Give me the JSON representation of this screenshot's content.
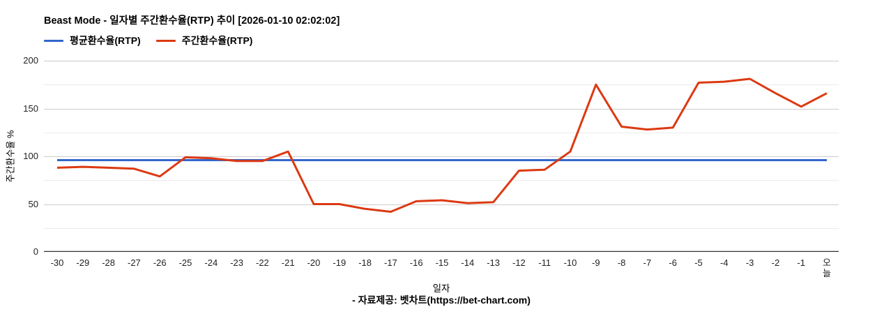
{
  "header": {
    "title": "Beast Mode - 일자별 주간환수율(RTP) 추이 [2026-01-10 02:02:02]"
  },
  "legend": {
    "average_label": "평균환수율(RTP)",
    "weekly_label": "주간환수율(RTP)"
  },
  "footer": {
    "credit": "- 자료제공: 벳차트(https://bet-chart.com)"
  },
  "chart_data": {
    "type": "line",
    "title": "Beast Mode - 일자별 주간환수율(RTP) 추이 [2026-01-10 02:02:02]",
    "xlabel": "일자",
    "ylabel": "주간환수율 %",
    "ylim": [
      0,
      200
    ],
    "yticks": [
      0,
      50,
      100,
      150,
      200
    ],
    "minor_grid_step": 25,
    "grid": {
      "major_color": "#cccccc",
      "minor_color": "#ebebeb",
      "axis_color": "#333333"
    },
    "legend_position": "top",
    "categories": [
      "-30",
      "-29",
      "-28",
      "-27",
      "-26",
      "-25",
      "-24",
      "-23",
      "-22",
      "-21",
      "-20",
      "-19",
      "-18",
      "-17",
      "-16",
      "-15",
      "-14",
      "-13",
      "-12",
      "-11",
      "-10",
      "-9",
      "-8",
      "-7",
      "-6",
      "-5",
      "-4",
      "-3",
      "-2",
      "-1",
      "오늘"
    ],
    "series": [
      {
        "id": "average",
        "name": "평균환수율(RTP)",
        "color": "#3366cc",
        "values": [
          96,
          96,
          96,
          96,
          96,
          96,
          96,
          96,
          96,
          96,
          96,
          96,
          96,
          96,
          96,
          96,
          96,
          96,
          96,
          96,
          96,
          96,
          96,
          96,
          96,
          96,
          96,
          96,
          96,
          96,
          96
        ]
      },
      {
        "id": "weekly",
        "name": "주간환수율(RTP)",
        "color": "#dc3912",
        "values": [
          88,
          89,
          88,
          87,
          79,
          99,
          98,
          95,
          95,
          105,
          50,
          50,
          45,
          42,
          53,
          54,
          51,
          52,
          85,
          86,
          105,
          175,
          131,
          128,
          130,
          177,
          178,
          181,
          166,
          152,
          166
        ]
      }
    ]
  }
}
